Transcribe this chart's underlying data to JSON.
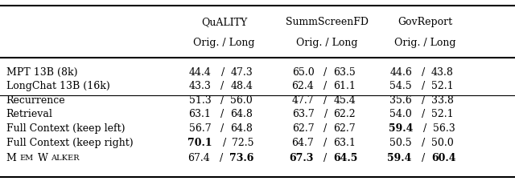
{
  "col_header_names": [
    "QuALITY",
    "SummScreenFD",
    "GovReport"
  ],
  "col_header_sub": [
    "Orig. / Long",
    "Orig. / Long",
    "Orig. / Long"
  ],
  "rows": [
    {
      "label": "MPT 13B (8k)",
      "label_smallcaps": false,
      "values": [
        [
          {
            "text": "44.4",
            "bold": false
          },
          {
            "text": " / ",
            "bold": false
          },
          {
            "text": "47.3",
            "bold": false
          }
        ],
        [
          {
            "text": "65.0",
            "bold": false
          },
          {
            "text": " / ",
            "bold": false
          },
          {
            "text": "63.5",
            "bold": false
          }
        ],
        [
          {
            "text": "44.6",
            "bold": false
          },
          {
            "text": " / ",
            "bold": false
          },
          {
            "text": "43.8",
            "bold": false
          }
        ]
      ],
      "group": 1
    },
    {
      "label": "LongChat 13B (16k)",
      "label_smallcaps": false,
      "values": [
        [
          {
            "text": "43.3",
            "bold": false
          },
          {
            "text": " / ",
            "bold": false
          },
          {
            "text": "48.4",
            "bold": false
          }
        ],
        [
          {
            "text": "62.4",
            "bold": false
          },
          {
            "text": " / ",
            "bold": false
          },
          {
            "text": "61.1",
            "bold": false
          }
        ],
        [
          {
            "text": "54.5",
            "bold": false
          },
          {
            "text": " / ",
            "bold": false
          },
          {
            "text": "52.1",
            "bold": false
          }
        ]
      ],
      "group": 1
    },
    {
      "label": "Recurrence",
      "label_smallcaps": false,
      "values": [
        [
          {
            "text": "51.3",
            "bold": false
          },
          {
            "text": " / ",
            "bold": false
          },
          {
            "text": "56.0",
            "bold": false
          }
        ],
        [
          {
            "text": "47.7",
            "bold": false
          },
          {
            "text": " / ",
            "bold": false
          },
          {
            "text": "45.4",
            "bold": false
          }
        ],
        [
          {
            "text": "35.6",
            "bold": false
          },
          {
            "text": " / ",
            "bold": false
          },
          {
            "text": "33.8",
            "bold": false
          }
        ]
      ],
      "group": 2
    },
    {
      "label": "Retrieval",
      "label_smallcaps": false,
      "values": [
        [
          {
            "text": "63.1",
            "bold": false
          },
          {
            "text": " / ",
            "bold": false
          },
          {
            "text": "64.8",
            "bold": false
          }
        ],
        [
          {
            "text": "63.7",
            "bold": false
          },
          {
            "text": " / ",
            "bold": false
          },
          {
            "text": "62.2",
            "bold": false
          }
        ],
        [
          {
            "text": "54.0",
            "bold": false
          },
          {
            "text": " / ",
            "bold": false
          },
          {
            "text": "52.1",
            "bold": false
          }
        ]
      ],
      "group": 2
    },
    {
      "label": "Full Context (keep left)",
      "label_smallcaps": false,
      "values": [
        [
          {
            "text": "56.7",
            "bold": false
          },
          {
            "text": " / ",
            "bold": false
          },
          {
            "text": "64.8",
            "bold": false
          }
        ],
        [
          {
            "text": "62.7",
            "bold": false
          },
          {
            "text": " / ",
            "bold": false
          },
          {
            "text": "62.7",
            "bold": false
          }
        ],
        [
          {
            "text": "59.4",
            "bold": true
          },
          {
            "text": " / ",
            "bold": false
          },
          {
            "text": "56.3",
            "bold": false
          }
        ]
      ],
      "group": 2
    },
    {
      "label": "Full Context (keep right)",
      "label_smallcaps": false,
      "values": [
        [
          {
            "text": "70.1",
            "bold": true
          },
          {
            "text": " / ",
            "bold": false
          },
          {
            "text": "72.5",
            "bold": false
          }
        ],
        [
          {
            "text": "64.7",
            "bold": false
          },
          {
            "text": " / ",
            "bold": false
          },
          {
            "text": "63.1",
            "bold": false
          }
        ],
        [
          {
            "text": "50.5",
            "bold": false
          },
          {
            "text": " / ",
            "bold": false
          },
          {
            "text": "50.0",
            "bold": false
          }
        ]
      ],
      "group": 2
    },
    {
      "label": "MemWalker",
      "label_smallcaps": true,
      "values": [
        [
          {
            "text": "67.4",
            "bold": false
          },
          {
            "text": " / ",
            "bold": false
          },
          {
            "text": "73.6",
            "bold": true
          }
        ],
        [
          {
            "text": "67.3",
            "bold": true
          },
          {
            "text": " / ",
            "bold": false
          },
          {
            "text": "64.5",
            "bold": true
          }
        ],
        [
          {
            "text": "59.4",
            "bold": true
          },
          {
            "text": " / ",
            "bold": false
          },
          {
            "text": "60.4",
            "bold": true
          }
        ]
      ],
      "group": 2
    }
  ],
  "font_size": 9.0,
  "background_color": "#ffffff",
  "text_color": "#000000",
  "line_color": "#000000"
}
